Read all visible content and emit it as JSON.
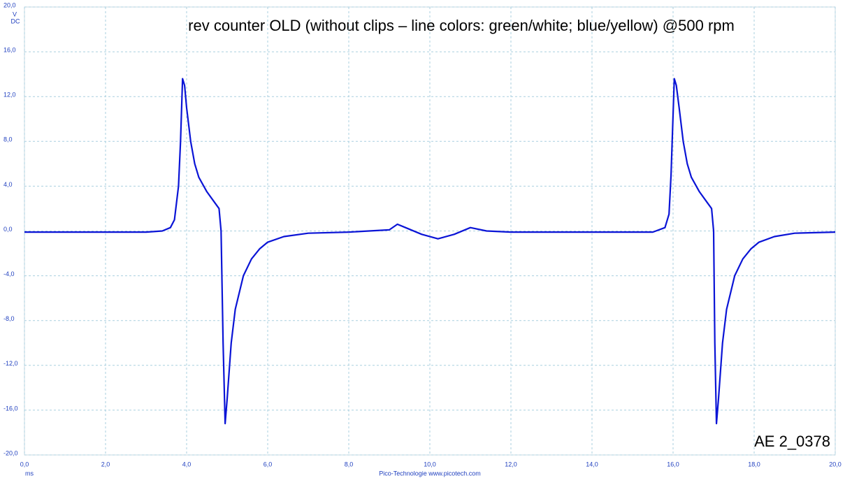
{
  "chart_data": {
    "type": "line",
    "title": "rev counter OLD (without clips – line colors: green/white; blue/yellow) @500 rpm",
    "y_unit": "V",
    "coupling": "DC",
    "x_unit": "ms",
    "footer": "Pico-Technologie  www.picotech.com",
    "watermark": "AE 2_0378",
    "grid": true,
    "xlim": [
      0,
      20
    ],
    "ylim": [
      -20,
      20
    ],
    "xticks": [
      {
        "value": 0,
        "label": "0,0"
      },
      {
        "value": 2,
        "label": "2,0"
      },
      {
        "value": 4,
        "label": "4,0"
      },
      {
        "value": 6,
        "label": "6,0"
      },
      {
        "value": 8,
        "label": "8,0"
      },
      {
        "value": 10,
        "label": "10,0"
      },
      {
        "value": 12,
        "label": "12,0"
      },
      {
        "value": 14,
        "label": "14,0"
      },
      {
        "value": 16,
        "label": "16,0"
      },
      {
        "value": 18,
        "label": "18,0"
      },
      {
        "value": 20,
        "label": "20,0"
      }
    ],
    "yticks": [
      {
        "value": -20,
        "label": "-20,0"
      },
      {
        "value": -16,
        "label": "-16,0"
      },
      {
        "value": -12,
        "label": "-12,0"
      },
      {
        "value": -8,
        "label": "-8,0"
      },
      {
        "value": -4,
        "label": "-4,0"
      },
      {
        "value": 0,
        "label": "0,0"
      },
      {
        "value": 4,
        "label": "4,0"
      },
      {
        "value": 8,
        "label": "8,0"
      },
      {
        "value": 12,
        "label": "12,0"
      },
      {
        "value": 16,
        "label": "16,0"
      },
      {
        "value": 20,
        "label": "20,0"
      }
    ],
    "x": [
      0,
      0.5,
      1,
      2,
      3,
      3.4,
      3.6,
      3.7,
      3.8,
      3.85,
      3.9,
      3.95,
      4.0,
      4.1,
      4.2,
      4.3,
      4.5,
      4.7,
      4.8,
      4.85,
      4.9,
      4.95,
      5.0,
      5.1,
      5.2,
      5.4,
      5.6,
      5.8,
      6.0,
      6.4,
      7,
      8,
      9,
      9.2,
      9.4,
      9.8,
      10.2,
      10.6,
      11,
      11.4,
      12,
      14,
      15.5,
      15.8,
      15.9,
      15.95,
      16.03,
      16.08,
      16.15,
      16.25,
      16.35,
      16.45,
      16.65,
      16.85,
      16.95,
      17.0,
      17.03,
      17.07,
      17.12,
      17.22,
      17.32,
      17.52,
      17.72,
      17.92,
      18.12,
      18.5,
      19,
      20
    ],
    "series": [
      {
        "color": "#0a14d6",
        "values": [
          -0.1,
          -0.1,
          -0.1,
          -0.1,
          -0.1,
          0,
          0.3,
          1,
          4,
          8,
          13.6,
          13,
          11,
          8,
          6,
          4.8,
          3.5,
          2.5,
          2,
          0,
          -10,
          -17.2,
          -15,
          -10,
          -7,
          -4,
          -2.5,
          -1.6,
          -1,
          -0.5,
          -0.2,
          -0.1,
          0.1,
          0.6,
          0.3,
          -0.3,
          -0.7,
          -0.3,
          0.3,
          0,
          -0.1,
          -0.1,
          -0.1,
          0.3,
          1.5,
          5,
          13.6,
          13,
          11,
          8,
          6,
          4.8,
          3.5,
          2.5,
          2,
          0,
          -10,
          -17.2,
          -15,
          -10,
          -7,
          -4,
          -2.5,
          -1.6,
          -1,
          -0.5,
          -0.2,
          -0.1
        ]
      }
    ]
  }
}
